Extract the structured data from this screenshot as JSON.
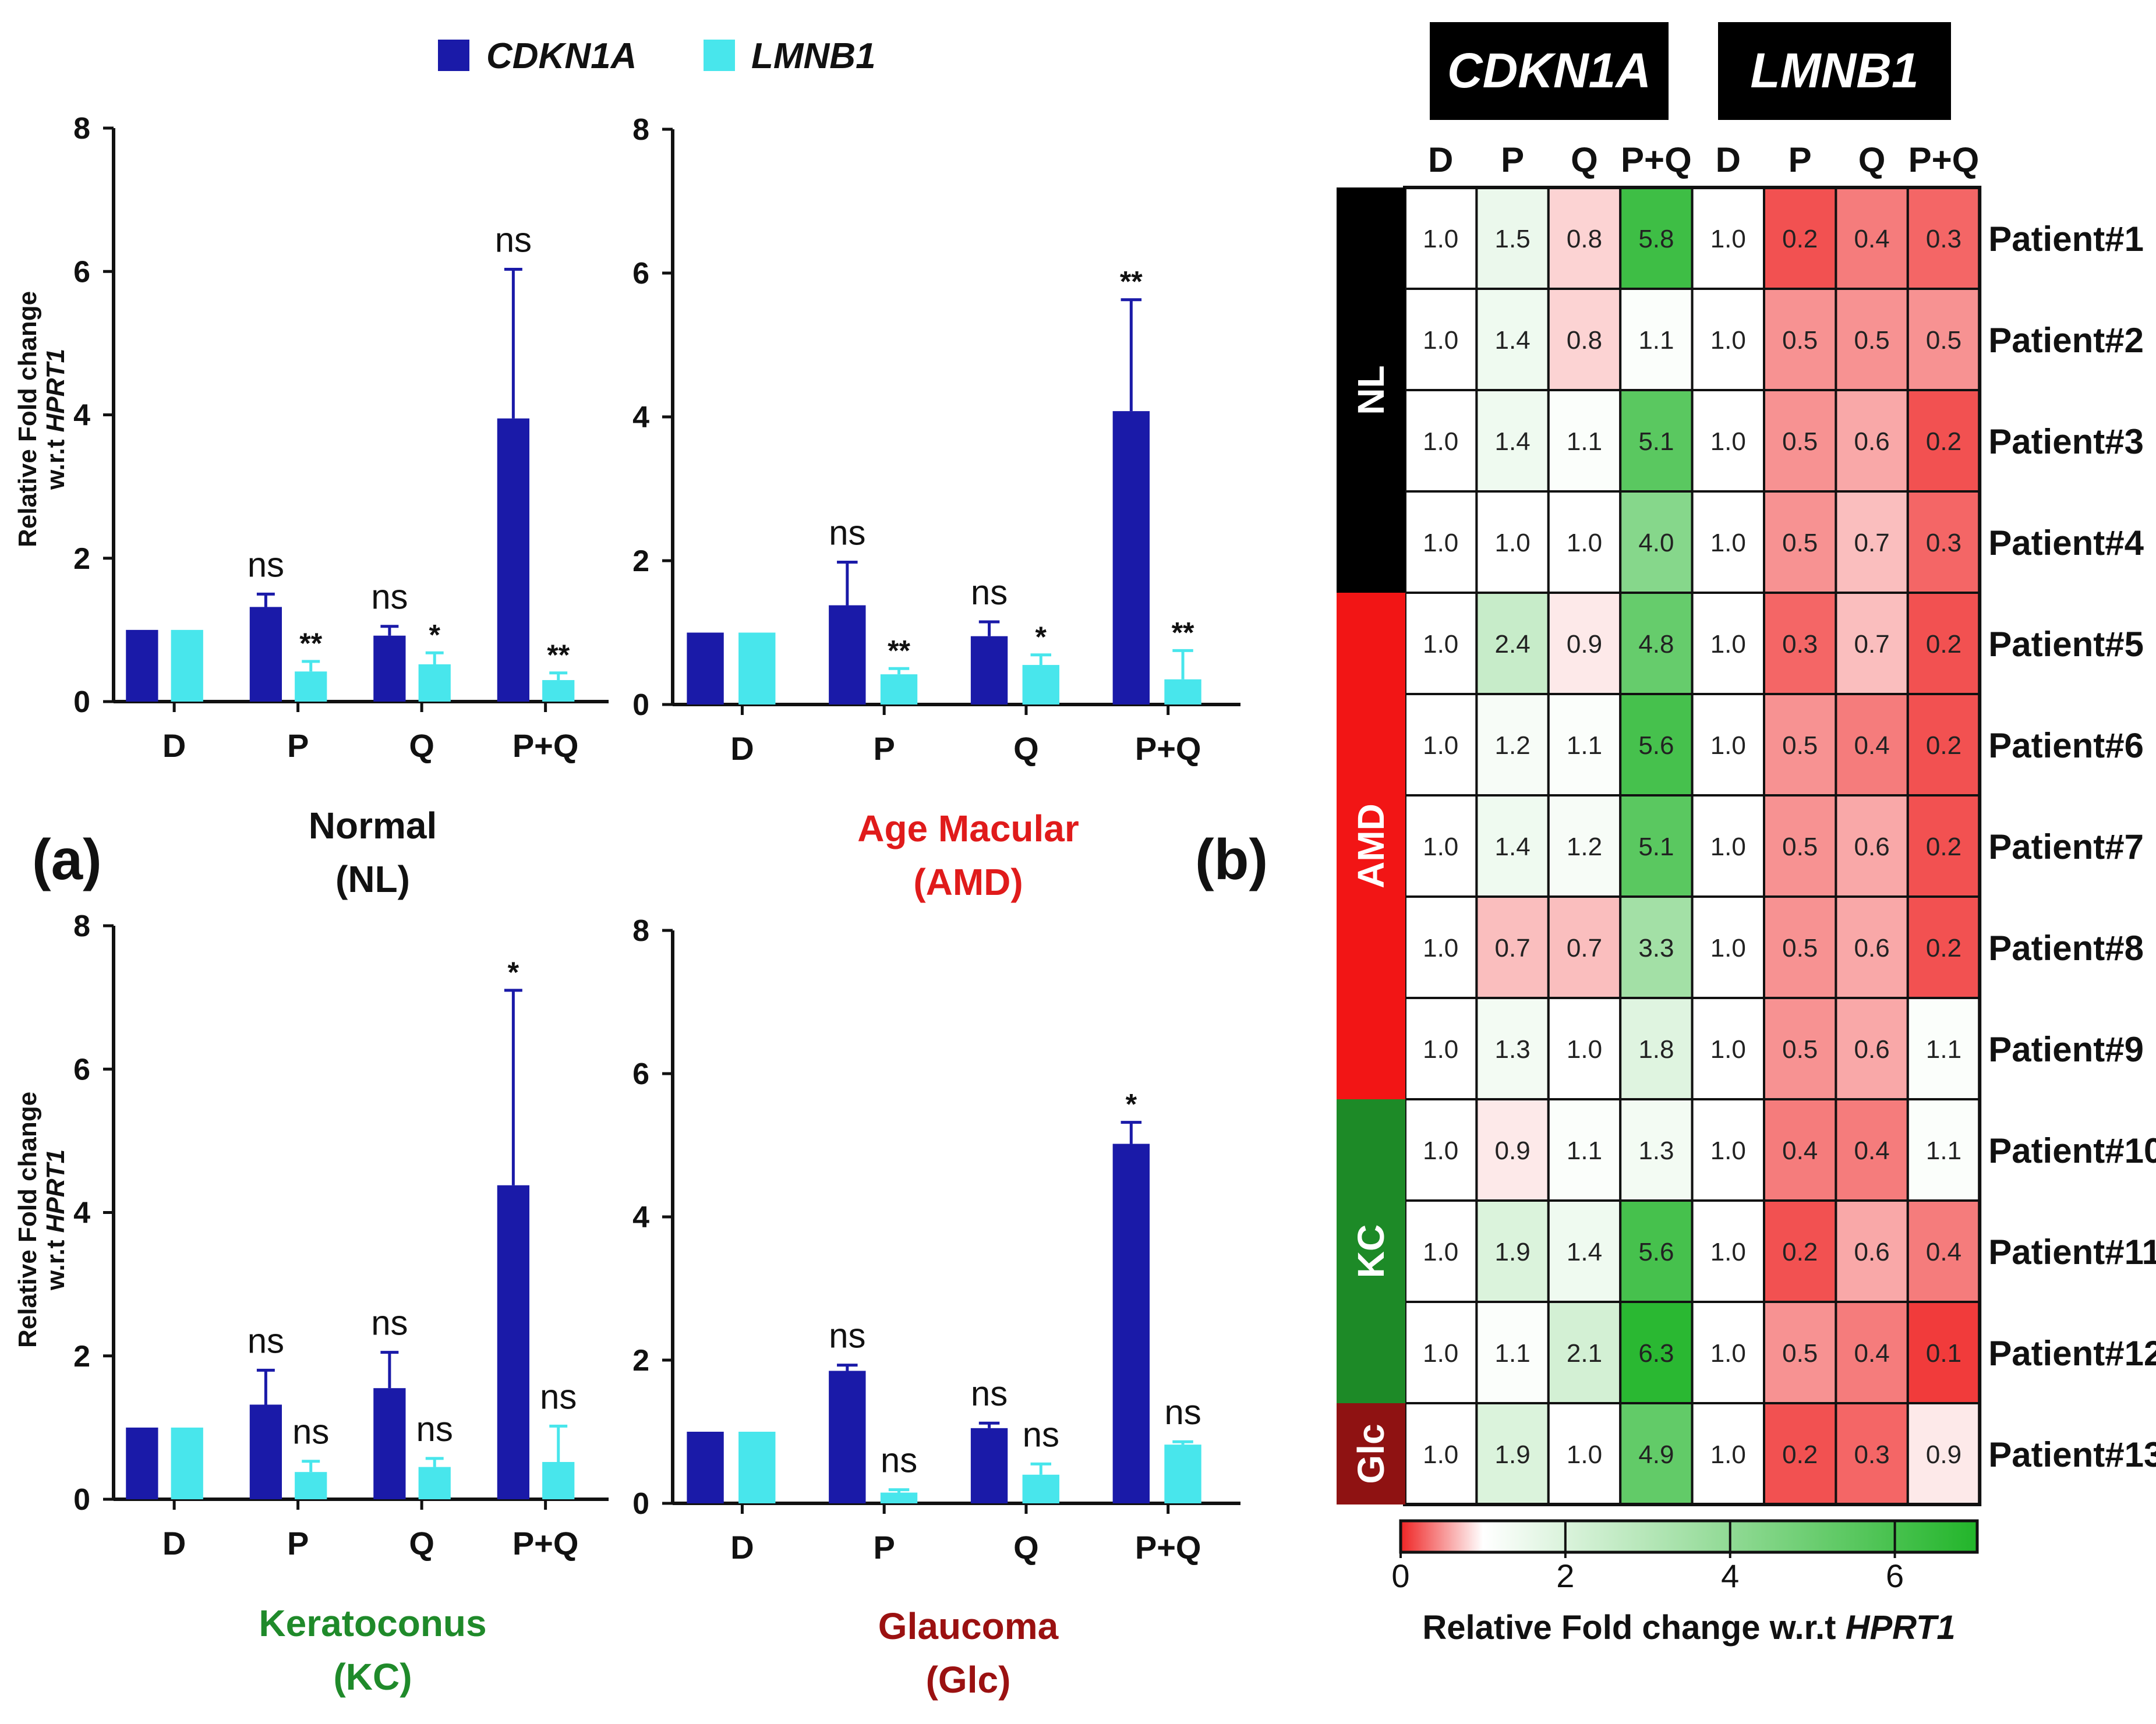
{
  "colors": {
    "cdkn1a": "#1a1aa8",
    "lmnb1": "#48e6ec",
    "normal_title": "#111111",
    "amd_title": "#e01b1b",
    "kc_title": "#1f8a2a",
    "glc_title": "#9b1111",
    "nl_group": "#000000",
    "amd_group": "#f21515",
    "kc_group": "#1d8a27",
    "glc_group": "#8f1212",
    "heat_low": "#ef2525",
    "heat_mid": "#ffffff",
    "heat_high": "#22b52a"
  },
  "panel_labels": {
    "a": "(a)",
    "b": "(b)"
  },
  "legend": {
    "series": [
      "CDKN1A",
      "LMNB1"
    ]
  },
  "ylabel": {
    "line1": "Relative Fold change",
    "line2_prefix": "w.r.t ",
    "line2_gene": "HPRT1"
  },
  "chart_data": [
    {
      "type": "bar",
      "title": [
        "Normal",
        "(NL)"
      ],
      "categories": [
        "D",
        "P",
        "Q",
        "P+Q"
      ],
      "ylim": [
        0,
        8
      ],
      "yticks": [
        0,
        2,
        4,
        6,
        8
      ],
      "xlabel": "",
      "ylabel": "Relative Fold change w.r.t HPRT1",
      "series": [
        {
          "name": "CDKN1A",
          "values": [
            1.0,
            1.32,
            0.92,
            3.95
          ],
          "errors": [
            0,
            0.18,
            0.13,
            2.08
          ],
          "sig": [
            "",
            "ns",
            "ns",
            "ns"
          ]
        },
        {
          "name": "LMNB1",
          "values": [
            1.0,
            0.42,
            0.52,
            0.3
          ],
          "errors": [
            0,
            0.14,
            0.16,
            0.1
          ],
          "sig": [
            "",
            "**",
            "*",
            "**"
          ]
        }
      ]
    },
    {
      "type": "bar",
      "title": [
        "Age Macular",
        "(AMD)"
      ],
      "categories": [
        "D",
        "P",
        "Q",
        "P+Q"
      ],
      "ylim": [
        0,
        8
      ],
      "yticks": [
        0,
        2,
        4,
        6,
        8
      ],
      "xlabel": "",
      "ylabel": "",
      "series": [
        {
          "name": "CDKN1A",
          "values": [
            1.0,
            1.38,
            0.95,
            4.08
          ],
          "errors": [
            0,
            0.6,
            0.2,
            1.55
          ],
          "sig": [
            "",
            "ns",
            "ns",
            "**"
          ]
        },
        {
          "name": "LMNB1",
          "values": [
            1.0,
            0.42,
            0.55,
            0.35
          ],
          "errors": [
            0,
            0.08,
            0.14,
            0.4
          ],
          "sig": [
            "",
            "**",
            "*",
            "**"
          ]
        }
      ]
    },
    {
      "type": "bar",
      "title": [
        "Keratoconus",
        "(KC)"
      ],
      "categories": [
        "D",
        "P",
        "Q",
        "P+Q"
      ],
      "ylim": [
        0,
        8
      ],
      "yticks": [
        0,
        2,
        4,
        6,
        8
      ],
      "xlabel": "",
      "ylabel": "Relative Fold change w.r.t HPRT1",
      "series": [
        {
          "name": "CDKN1A",
          "values": [
            1.0,
            1.32,
            1.55,
            4.38
          ],
          "errors": [
            0,
            0.48,
            0.5,
            2.72
          ],
          "sig": [
            "",
            "ns",
            "ns",
            "*"
          ]
        },
        {
          "name": "LMNB1",
          "values": [
            1.0,
            0.38,
            0.45,
            0.52
          ],
          "errors": [
            0,
            0.15,
            0.12,
            0.5
          ],
          "sig": [
            "",
            "ns",
            "ns",
            "ns"
          ]
        }
      ]
    },
    {
      "type": "bar",
      "title": [
        "Glaucoma",
        "(Glc)"
      ],
      "categories": [
        "D",
        "P",
        "Q",
        "P+Q"
      ],
      "ylim": [
        0,
        8
      ],
      "yticks": [
        0,
        2,
        4,
        6,
        8
      ],
      "xlabel": "",
      "ylabel": "",
      "series": [
        {
          "name": "CDKN1A",
          "values": [
            1.0,
            1.85,
            1.05,
            5.02
          ],
          "errors": [
            0,
            0.08,
            0.07,
            0.3
          ],
          "sig": [
            "",
            "ns",
            "ns",
            "*"
          ]
        },
        {
          "name": "LMNB1",
          "values": [
            1.0,
            0.15,
            0.4,
            0.82
          ],
          "errors": [
            0,
            0.04,
            0.15,
            0.04
          ],
          "sig": [
            "",
            "ns",
            "ns",
            "ns"
          ]
        }
      ]
    },
    {
      "type": "heatmap",
      "gene_headers": [
        "CDKN1A",
        "LMNB1"
      ],
      "columns": [
        "D",
        "P",
        "Q",
        "P+Q",
        "D",
        "P",
        "Q",
        "P+Q"
      ],
      "rows": [
        "Patient#1",
        "Patient#2",
        "Patient#3",
        "Patient#4",
        "Patient#5",
        "Patient#6",
        "Patient#7",
        "Patient#8",
        "Patient#9",
        "Patient#10",
        "Patient#11",
        "Patient#12",
        "Patient#13"
      ],
      "groups": [
        {
          "label": "NL",
          "rows": 4
        },
        {
          "label": "AMD",
          "rows": 5
        },
        {
          "label": "KC",
          "rows": 3
        },
        {
          "label": "Glc",
          "rows": 1
        }
      ],
      "values": [
        [
          1.0,
          1.5,
          0.8,
          5.8,
          1.0,
          0.2,
          0.4,
          0.3
        ],
        [
          1.0,
          1.4,
          0.8,
          1.1,
          1.0,
          0.5,
          0.5,
          0.5
        ],
        [
          1.0,
          1.4,
          1.1,
          5.1,
          1.0,
          0.5,
          0.6,
          0.2
        ],
        [
          1.0,
          1.0,
          1.0,
          4.0,
          1.0,
          0.5,
          0.7,
          0.3
        ],
        [
          1.0,
          2.4,
          0.9,
          4.8,
          1.0,
          0.3,
          0.7,
          0.2
        ],
        [
          1.0,
          1.2,
          1.1,
          5.6,
          1.0,
          0.5,
          0.4,
          0.2
        ],
        [
          1.0,
          1.4,
          1.2,
          5.1,
          1.0,
          0.5,
          0.6,
          0.2
        ],
        [
          1.0,
          0.7,
          0.7,
          3.3,
          1.0,
          0.5,
          0.6,
          0.2
        ],
        [
          1.0,
          1.3,
          1.0,
          1.8,
          1.0,
          0.5,
          0.6,
          1.1
        ],
        [
          1.0,
          0.9,
          1.1,
          1.3,
          1.0,
          0.4,
          0.4,
          1.1
        ],
        [
          1.0,
          1.9,
          1.4,
          5.6,
          1.0,
          0.2,
          0.6,
          0.4
        ],
        [
          1.0,
          1.1,
          2.1,
          6.3,
          1.0,
          0.5,
          0.4,
          0.1
        ],
        [
          1.0,
          1.9,
          1.0,
          4.9,
          1.0,
          0.2,
          0.3,
          0.9
        ]
      ],
      "colorbar": {
        "range": [
          0,
          7
        ],
        "ticks": [
          0,
          2,
          4,
          6
        ],
        "label_prefix": "Relative Fold change  w.r.t ",
        "label_gene": "HPRT1"
      }
    }
  ]
}
